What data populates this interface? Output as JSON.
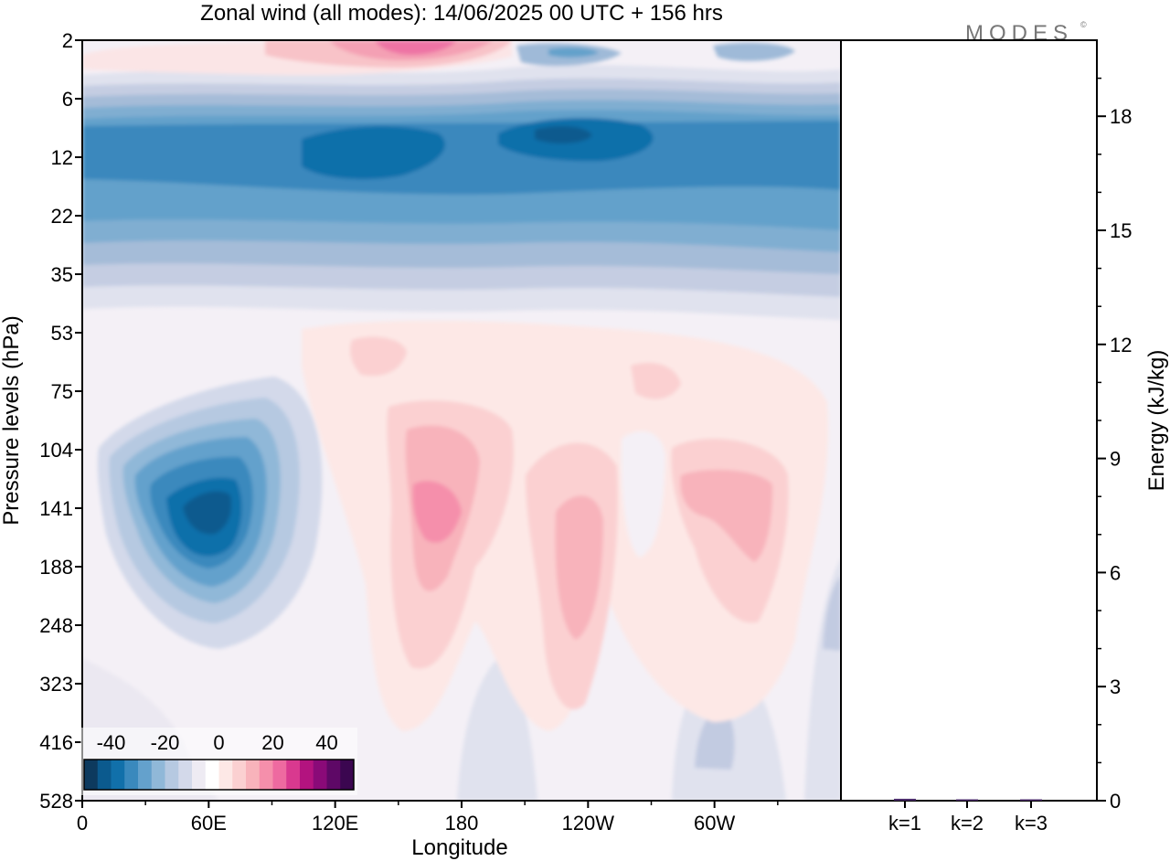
{
  "logo": {
    "text": "MODES",
    "mark": "©"
  },
  "chart_data": [
    {
      "type": "heatmap",
      "title": "Zonal wind (all modes):  14/06/2025  00 UTC  + 156 hrs",
      "xlabel": "Longitude",
      "ylabel": "Pressure levels (hPa)",
      "x_ticks": [
        "0",
        "60E",
        "120E",
        "180",
        "120W",
        "60W"
      ],
      "x_tick_degrees": [
        0,
        60,
        120,
        180,
        240,
        300
      ],
      "xlim": [
        0,
        360
      ],
      "y_ticks": [
        "2",
        "6",
        "12",
        "22",
        "35",
        "53",
        "75",
        "104",
        "141",
        "188",
        "248",
        "323",
        "416",
        "528"
      ],
      "y_scale": "model levels (top to bottom)",
      "colorbar": {
        "ticks": [
          "-40",
          "-20",
          "0",
          "20",
          "40"
        ],
        "range": [
          -50,
          50
        ],
        "step": 5,
        "colors": [
          "#0d3a5e",
          "#0b5a8e",
          "#1170aa",
          "#3a89bd",
          "#64a1cc",
          "#90b8d8",
          "#b6c9e1",
          "#d3d9ea",
          "#eeebf3",
          "#ffffff",
          "#fde8e6",
          "#fbd0d1",
          "#f8b3bb",
          "#f58fab",
          "#ee6aa0",
          "#d9398f",
          "#b3137f",
          "#8a0a78",
          "#5e0866",
          "#3b0650"
        ],
        "placement": "bottom-left inset"
      },
      "features": [
        {
          "name": "stratospheric easterly jet",
          "levels": "6-35 hPa",
          "approx_value": -30
        },
        {
          "name": "upper-troposphere easterly core",
          "lon": "60E",
          "level": "141 hPa",
          "approx_value": -38
        },
        {
          "name": "westerly maximum",
          "lon": "165E",
          "level": "141 hPa",
          "approx_value": 18
        },
        {
          "name": "westerly maximum",
          "lon": "125W",
          "level": "188 hPa",
          "approx_value": 12
        },
        {
          "name": "westerly maximum",
          "lon": "55W",
          "level": "141 hPa",
          "approx_value": 12
        },
        {
          "name": "upper westerly",
          "lon": "110E",
          "level": "2 hPa",
          "approx_value": 15
        }
      ]
    },
    {
      "type": "bar",
      "ylabel": "Energy (kJ/kg)",
      "categories": [
        "k=1",
        "k=2",
        "k=3"
      ],
      "values": [
        0.05,
        0.03,
        0.02
      ],
      "ylim": [
        0,
        20
      ],
      "y_ticks": [
        "0",
        "3",
        "6",
        "9",
        "12",
        "15",
        "18"
      ],
      "y_tick_values": [
        0,
        3,
        6,
        9,
        12,
        15,
        18
      ]
    }
  ]
}
